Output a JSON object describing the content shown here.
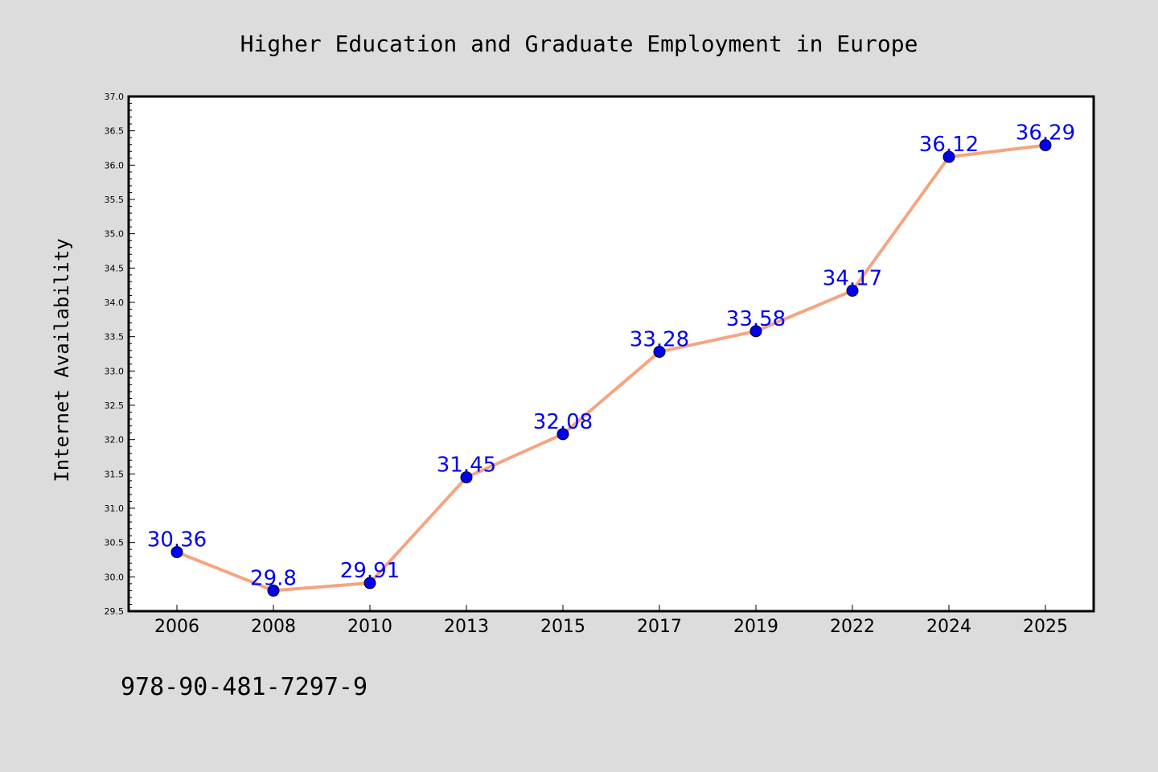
{
  "chart_data": {
    "type": "line",
    "title": "Higher Education and Graduate Employment in Europe",
    "xlabel": "",
    "ylabel": "Internet Availability",
    "categories": [
      "2006",
      "2008",
      "2010",
      "2013",
      "2015",
      "2017",
      "2019",
      "2022",
      "2024",
      "2025"
    ],
    "series": [
      {
        "values": [
          30.36,
          29.8,
          29.91,
          31.45,
          32.08,
          33.28,
          33.58,
          34.17,
          36.12,
          36.29
        ],
        "labels": [
          "30.36",
          "29.8",
          "29.91",
          "31.45",
          "32.08",
          "33.28",
          "33.58",
          "34.17",
          "36.12",
          "36.29"
        ],
        "line_color": "#f4a582",
        "marker_color": "#0000ee",
        "label_color": "#0000ee"
      }
    ],
    "ylim": [
      29.5,
      37.0
    ],
    "yticks": [
      "29.5",
      "30.0",
      "30.5",
      "31.0",
      "31.5",
      "32.0",
      "32.5",
      "33.0",
      "33.5",
      "34.0",
      "34.5",
      "35.0",
      "35.5",
      "36.0",
      "36.5",
      "37.0"
    ],
    "grid": false,
    "legend": "none"
  },
  "footer": {
    "isbn": "978-90-481-7297-9"
  },
  "colors": {
    "background": "#dcdcdc",
    "plot_background": "#ffffff"
  }
}
